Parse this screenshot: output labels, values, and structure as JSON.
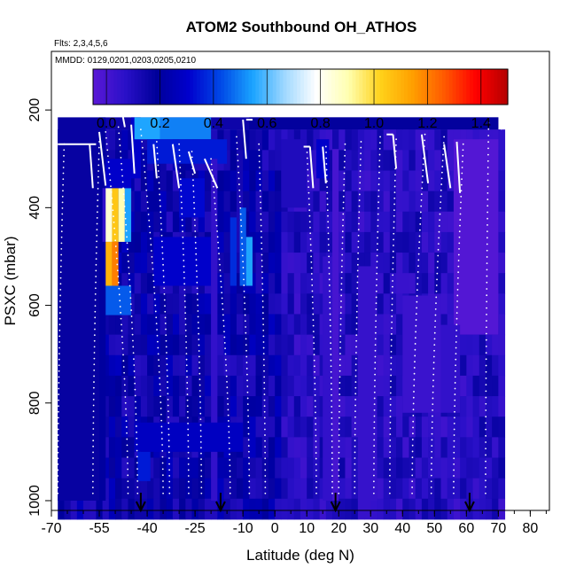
{
  "chart_data": {
    "type": "heatmap",
    "title": "ATOM2 Southbound OH_ATHOS",
    "flights_label": "Flts: 2,3,4,5,6",
    "dates_label": "MMDD: 0129,0201,0203,0205,0210",
    "xlabel": "Latitude (deg N)",
    "ylabel": "PSXC (mbar)",
    "xlim": [
      -70,
      86
    ],
    "ylim": [
      1020,
      80
    ],
    "x_ticks": [
      -70,
      -55,
      -40,
      -25,
      -10,
      0,
      10,
      20,
      30,
      40,
      50,
      60,
      70,
      80
    ],
    "x_tick_labels": [
      "-70",
      "-55",
      "-40",
      "-25",
      "-10",
      "0",
      "10",
      "20",
      "30",
      "40",
      "50",
      "60",
      "70",
      "80"
    ],
    "y_ticks": [
      200,
      400,
      600,
      800,
      1000
    ],
    "y_tick_labels": [
      "200",
      "400",
      "600",
      "800",
      "1000"
    ],
    "colorbar": {
      "range": [
        -0.05,
        1.5
      ],
      "ticks": [
        0.0,
        0.2,
        0.4,
        0.6,
        0.8,
        1.0,
        1.2,
        1.4
      ],
      "tick_labels": [
        "0.0",
        "0.2",
        "0.4",
        "0.6",
        "0.8",
        "1.0",
        "1.2",
        "1.4"
      ],
      "colors": [
        "#5b18d6",
        "#2a10c8",
        "#00009a",
        "#0000cd",
        "#0048e6",
        "#1aa3ff",
        "#9fd8ff",
        "#ffffff",
        "#ffffb0",
        "#ffd21a",
        "#ffa000",
        "#ff5a00",
        "#ff0000",
        "#b40000"
      ]
    },
    "arrow_latitudes": [
      -42,
      -17,
      19,
      61
    ],
    "cells": [
      {
        "lat0": -68,
        "lat1": -55,
        "p0": 215,
        "p1": 1000,
        "value": 0.17
      },
      {
        "lat0": -55,
        "lat1": -53,
        "p0": 215,
        "p1": 1000,
        "value": 0.2
      },
      {
        "lat0": -54,
        "lat1": -51,
        "p0": 360,
        "p1": 470,
        "value": 0.05
      },
      {
        "lat0": -53,
        "lat1": -51,
        "p0": 360,
        "p1": 470,
        "value": 0.85
      },
      {
        "lat0": -53,
        "lat1": -51,
        "p0": 470,
        "p1": 560,
        "value": 1.1
      },
      {
        "lat0": -51,
        "lat1": -49,
        "p0": 360,
        "p1": 470,
        "value": 1.05
      },
      {
        "lat0": -51,
        "lat1": -49,
        "p0": 470,
        "p1": 560,
        "value": 1.2
      },
      {
        "lat0": -49,
        "lat1": -47,
        "p0": 360,
        "p1": 470,
        "value": 0.9
      },
      {
        "lat0": -47,
        "lat1": -45,
        "p0": 360,
        "p1": 470,
        "value": 0.55
      },
      {
        "lat0": -53,
        "lat1": -45,
        "p0": 560,
        "p1": 620,
        "value": 0.45
      },
      {
        "lat0": -53,
        "lat1": -45,
        "p0": 300,
        "p1": 360,
        "value": 0.3
      },
      {
        "lat0": -45,
        "lat1": -42,
        "p0": 215,
        "p1": 340,
        "value": 0.3
      },
      {
        "lat0": -44,
        "lat1": -36,
        "p0": 215,
        "p1": 260,
        "value": 0.55
      },
      {
        "lat0": -36,
        "lat1": -20,
        "p0": 215,
        "p1": 260,
        "value": 0.5
      },
      {
        "lat0": -40,
        "lat1": -15,
        "p0": 260,
        "p1": 310,
        "value": 0.35
      },
      {
        "lat0": -38,
        "lat1": -20,
        "p0": 460,
        "p1": 560,
        "value": 0.3
      },
      {
        "lat0": -30,
        "lat1": -22,
        "p0": 340,
        "p1": 420,
        "value": 0.32
      },
      {
        "lat0": -20,
        "lat1": -18,
        "p0": 300,
        "p1": 1000,
        "value": 0.05
      },
      {
        "lat0": -14,
        "lat1": -12,
        "p0": 420,
        "p1": 560,
        "value": 0.38
      },
      {
        "lat0": -11,
        "lat1": -9,
        "p0": 400,
        "p1": 560,
        "value": 0.45
      },
      {
        "lat0": -9,
        "lat1": -7,
        "p0": 460,
        "p1": 560,
        "value": 0.55
      },
      {
        "lat0": -44,
        "lat1": -10,
        "p0": 840,
        "p1": 900,
        "value": 0.28
      },
      {
        "lat0": -43,
        "lat1": -39,
        "p0": 900,
        "p1": 960,
        "value": 0.35
      },
      {
        "lat0": -8,
        "lat1": 70,
        "p0": 215,
        "p1": 240,
        "value": 0.18
      },
      {
        "lat0": 2,
        "lat1": 10,
        "p0": 260,
        "p1": 400,
        "value": 0.1
      },
      {
        "lat0": 13,
        "lat1": 17,
        "p0": 260,
        "p1": 340,
        "value": 0.3
      },
      {
        "lat0": 15,
        "lat1": 18,
        "p0": 500,
        "p1": 1000,
        "value": 0.05
      },
      {
        "lat0": 18,
        "lat1": 20,
        "p0": 280,
        "p1": 1000,
        "value": 0.0
      },
      {
        "lat0": 26,
        "lat1": 32,
        "p0": 520,
        "p1": 1000,
        "value": 0.04
      },
      {
        "lat0": 40,
        "lat1": 52,
        "p0": 580,
        "p1": 820,
        "value": 0.03
      },
      {
        "lat0": 56,
        "lat1": 70,
        "p0": 260,
        "p1": 660,
        "value": -0.03
      },
      {
        "lat0": 52,
        "lat1": 58,
        "p0": 640,
        "p1": 820,
        "value": 0.05
      }
    ],
    "profiles": [
      {
        "lat_top": -66,
        "lat_bot": -68,
        "p_top": 270,
        "p_bot": 985
      },
      {
        "lat_top": -55,
        "lat_bot": -57,
        "p_top": 265,
        "p_bot": 985
      },
      {
        "lat_top": -53,
        "lat_bot": -46,
        "p_top": 245,
        "p_bot": 985
      },
      {
        "lat_top": -49,
        "lat_bot": -43,
        "p_top": 235,
        "p_bot": 985
      },
      {
        "lat_top": -42,
        "lat_bot": -35,
        "p_top": 240,
        "p_bot": 985
      },
      {
        "lat_top": -37,
        "lat_bot": -33,
        "p_top": 265,
        "p_bot": 985
      },
      {
        "lat_top": -30,
        "lat_bot": -27,
        "p_top": 270,
        "p_bot": 985
      },
      {
        "lat_top": -26,
        "lat_bot": -23,
        "p_top": 285,
        "p_bot": 985
      },
      {
        "lat_top": -20,
        "lat_bot": -14,
        "p_top": 300,
        "p_bot": 985
      },
      {
        "lat_top": -12,
        "lat_bot": -8,
        "p_top": 255,
        "p_bot": 985
      },
      {
        "lat_top": -5,
        "lat_bot": -3,
        "p_top": 270,
        "p_bot": 985
      },
      {
        "lat_top": 10,
        "lat_bot": 13,
        "p_top": 275,
        "p_bot": 985
      },
      {
        "lat_top": 16,
        "lat_bot": 18,
        "p_top": 275,
        "p_bot": 985
      },
      {
        "lat_top": 22,
        "lat_bot": 20,
        "p_top": 270,
        "p_bot": 985
      },
      {
        "lat_top": 27,
        "lat_bot": 25,
        "p_top": 265,
        "p_bot": 985
      },
      {
        "lat_top": 33,
        "lat_bot": 31,
        "p_top": 255,
        "p_bot": 985
      },
      {
        "lat_top": 38,
        "lat_bot": 36,
        "p_top": 260,
        "p_bot": 985
      },
      {
        "lat_top": 47,
        "lat_bot": 43,
        "p_top": 250,
        "p_bot": 985
      },
      {
        "lat_top": 53,
        "lat_bot": 49,
        "p_top": 255,
        "p_bot": 985
      },
      {
        "lat_top": 59,
        "lat_bot": 56,
        "p_top": 270,
        "p_bot": 985
      },
      {
        "lat_top": 67,
        "lat_bot": 66,
        "p_top": 200,
        "p_bot": 985
      }
    ],
    "flight_tracks": [
      {
        "lats": [
          -68,
          -56
        ],
        "ps": [
          270,
          270
        ]
      },
      {
        "lats": [
          -58,
          -57
        ],
        "ps": [
          270,
          360
        ]
      },
      {
        "lats": [
          -55,
          -53
        ],
        "ps": [
          245,
          355
        ]
      },
      {
        "lats": [
          -49,
          -48
        ],
        "ps": [
          200,
          200
        ]
      },
      {
        "lats": [
          -48,
          -47
        ],
        "ps": [
          200,
          235
        ]
      },
      {
        "lats": [
          -45,
          -44
        ],
        "ps": [
          230,
          330
        ]
      },
      {
        "lats": [
          -38,
          -37
        ],
        "ps": [
          270,
          340
        ]
      },
      {
        "lats": [
          -32,
          -30
        ],
        "ps": [
          270,
          360
        ]
      },
      {
        "lats": [
          -27,
          -25
        ],
        "ps": [
          285,
          330
        ]
      },
      {
        "lats": [
          -22,
          -18
        ],
        "ps": [
          300,
          360
        ]
      },
      {
        "lats": [
          -10,
          -9
        ],
        "ps": [
          220,
          300
        ]
      },
      {
        "lats": [
          -9,
          -7
        ],
        "ps": [
          220,
          220
        ]
      },
      {
        "lats": [
          9,
          11
        ],
        "ps": [
          275,
          275
        ]
      },
      {
        "lats": [
          11,
          12
        ],
        "ps": [
          275,
          360
        ]
      },
      {
        "lats": [
          15,
          16
        ],
        "ps": [
          275,
          350
        ]
      },
      {
        "lats": [
          35,
          37
        ],
        "ps": [
          250,
          250
        ]
      },
      {
        "lats": [
          37,
          38
        ],
        "ps": [
          250,
          320
        ]
      },
      {
        "lats": [
          46,
          48
        ],
        "ps": [
          250,
          350
        ]
      },
      {
        "lats": [
          53,
          55
        ],
        "ps": [
          270,
          360
        ]
      },
      {
        "lats": [
          57,
          58
        ],
        "ps": [
          265,
          370
        ]
      },
      {
        "lats": [
          65,
          66
        ],
        "ps": [
          200,
          210
        ]
      },
      {
        "lats": [
          66,
          70
        ],
        "ps": [
          200,
          200
        ]
      },
      {
        "lats": [
          70,
          71
        ],
        "ps": [
          200,
          240
        ]
      }
    ]
  }
}
